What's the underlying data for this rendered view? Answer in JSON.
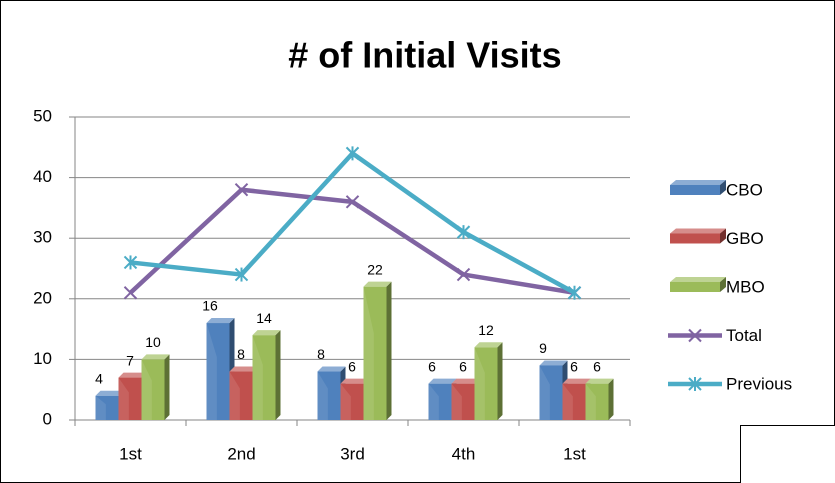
{
  "chart_data": {
    "type": "bar",
    "title": "# of Initial Visits",
    "categories": [
      "1st",
      "2nd",
      "3rd",
      "4th",
      "1st"
    ],
    "series": [
      {
        "name": "CBO",
        "color": "#4f81bd",
        "values": [
          4,
          16,
          8,
          6,
          9
        ]
      },
      {
        "name": "GBO",
        "color": "#c0504d",
        "values": [
          7,
          8,
          6,
          6,
          6
        ]
      },
      {
        "name": "MBO",
        "color": "#9bbb59",
        "values": [
          10,
          14,
          22,
          12,
          6
        ]
      },
      {
        "name": "Total",
        "color": "#8064a2",
        "type": "line",
        "values": [
          21,
          38,
          36,
          24,
          21
        ]
      },
      {
        "name": "Previous",
        "color": "#4bacc6",
        "type": "line",
        "values": [
          26,
          24,
          44,
          31,
          21
        ]
      }
    ],
    "ylim": [
      0,
      50
    ],
    "yticks": [
      0,
      10,
      20,
      30,
      40,
      50
    ],
    "grid": true,
    "legend": "right"
  }
}
